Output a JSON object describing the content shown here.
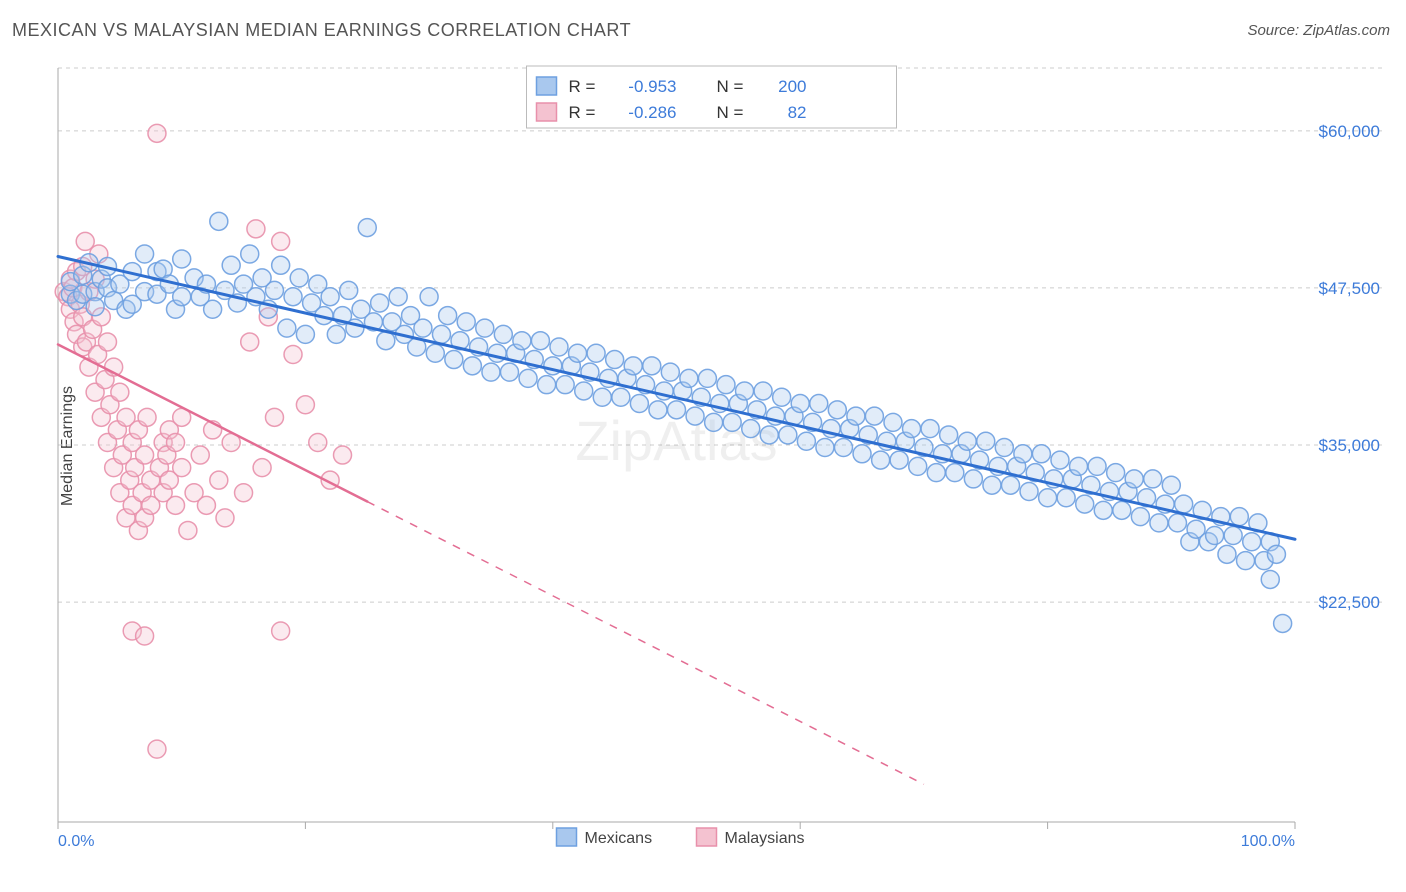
{
  "title": "MEXICAN VS MALAYSIAN MEDIAN EARNINGS CORRELATION CHART",
  "source": "Source: ZipAtlas.com",
  "watermark": "ZipAtlas",
  "ylabel": "Median Earnings",
  "chart": {
    "type": "scatter",
    "background_color": "#ffffff",
    "grid_color": "#cccccc",
    "axis_color": "#aaaaaa",
    "text_color": "#555555",
    "value_color": "#3d7bd9",
    "xlim": [
      0,
      100
    ],
    "ylim": [
      5000,
      65000
    ],
    "x_ticks": [
      0,
      20,
      40,
      60,
      80,
      100
    ],
    "x_tick_labels": [
      "0.0%",
      "",
      "",
      "",
      "",
      "100.0%"
    ],
    "y_ticks": [
      22500,
      35000,
      47500,
      60000
    ],
    "y_tick_labels": [
      "$22,500",
      "$35,000",
      "$47,500",
      "$60,000"
    ],
    "marker_radius": 9,
    "marker_fill_opacity": 0.35,
    "marker_stroke_opacity": 0.9,
    "series": [
      {
        "name": "Mexicans",
        "color_fill": "#a9c8ee",
        "color_stroke": "#6ea0e0",
        "trend_color": "#2f6fd0",
        "trend_width": 3,
        "trend_dash_after_x": 100,
        "trend": {
          "x0": 0,
          "y0": 50000,
          "x1": 100,
          "y1": 27500
        },
        "R": "-0.953",
        "N": "200",
        "points": [
          [
            1,
            47000
          ],
          [
            1,
            48000
          ],
          [
            1.5,
            46500
          ],
          [
            2,
            48500
          ],
          [
            2,
            47000
          ],
          [
            2.5,
            49500
          ],
          [
            3,
            47200
          ],
          [
            3,
            46000
          ],
          [
            3.5,
            48200
          ],
          [
            4,
            47500
          ],
          [
            4,
            49200
          ],
          [
            4.5,
            46500
          ],
          [
            5,
            47800
          ],
          [
            5.5,
            45800
          ],
          [
            6,
            48800
          ],
          [
            6,
            46200
          ],
          [
            7,
            47200
          ],
          [
            7,
            50200
          ],
          [
            8,
            48800
          ],
          [
            8,
            47000
          ],
          [
            8.5,
            49000
          ],
          [
            9,
            47800
          ],
          [
            9.5,
            45800
          ],
          [
            10,
            46800
          ],
          [
            10,
            49800
          ],
          [
            11,
            48300
          ],
          [
            11.5,
            46800
          ],
          [
            12,
            47800
          ],
          [
            12.5,
            45800
          ],
          [
            13,
            52800
          ],
          [
            13.5,
            47300
          ],
          [
            14,
            49300
          ],
          [
            14.5,
            46300
          ],
          [
            15,
            47800
          ],
          [
            15.5,
            50200
          ],
          [
            16,
            46800
          ],
          [
            16.5,
            48300
          ],
          [
            17,
            45800
          ],
          [
            17.5,
            47300
          ],
          [
            18,
            49300
          ],
          [
            18.5,
            44300
          ],
          [
            19,
            46800
          ],
          [
            19.5,
            48300
          ],
          [
            20,
            43800
          ],
          [
            20.5,
            46300
          ],
          [
            21,
            47800
          ],
          [
            21.5,
            45300
          ],
          [
            22,
            46800
          ],
          [
            22.5,
            43800
          ],
          [
            23,
            45300
          ],
          [
            23.5,
            47300
          ],
          [
            24,
            44300
          ],
          [
            24.5,
            45800
          ],
          [
            25,
            52300
          ],
          [
            25.5,
            44800
          ],
          [
            26,
            46300
          ],
          [
            26.5,
            43300
          ],
          [
            27,
            44800
          ],
          [
            27.5,
            46800
          ],
          [
            28,
            43800
          ],
          [
            28.5,
            45300
          ],
          [
            29,
            42800
          ],
          [
            29.5,
            44300
          ],
          [
            30,
            46800
          ],
          [
            30.5,
            42300
          ],
          [
            31,
            43800
          ],
          [
            31.5,
            45300
          ],
          [
            32,
            41800
          ],
          [
            32.5,
            43300
          ],
          [
            33,
            44800
          ],
          [
            33.5,
            41300
          ],
          [
            34,
            42800
          ],
          [
            34.5,
            44300
          ],
          [
            35,
            40800
          ],
          [
            35.5,
            42300
          ],
          [
            36,
            43800
          ],
          [
            36.5,
            40800
          ],
          [
            37,
            42300
          ],
          [
            37.5,
            43300
          ],
          [
            38,
            40300
          ],
          [
            38.5,
            41800
          ],
          [
            39,
            43300
          ],
          [
            39.5,
            39800
          ],
          [
            40,
            41300
          ],
          [
            40.5,
            42800
          ],
          [
            41,
            39800
          ],
          [
            41.5,
            41300
          ],
          [
            42,
            42300
          ],
          [
            42.5,
            39300
          ],
          [
            43,
            40800
          ],
          [
            43.5,
            42300
          ],
          [
            44,
            38800
          ],
          [
            44.5,
            40300
          ],
          [
            45,
            41800
          ],
          [
            45.5,
            38800
          ],
          [
            46,
            40300
          ],
          [
            46.5,
            41300
          ],
          [
            47,
            38300
          ],
          [
            47.5,
            39800
          ],
          [
            48,
            41300
          ],
          [
            48.5,
            37800
          ],
          [
            49,
            39300
          ],
          [
            49.5,
            40800
          ],
          [
            50,
            37800
          ],
          [
            50.5,
            39300
          ],
          [
            51,
            40300
          ],
          [
            51.5,
            37300
          ],
          [
            52,
            38800
          ],
          [
            52.5,
            40300
          ],
          [
            53,
            36800
          ],
          [
            53.5,
            38300
          ],
          [
            54,
            39800
          ],
          [
            54.5,
            36800
          ],
          [
            55,
            38300
          ],
          [
            55.5,
            39300
          ],
          [
            56,
            36300
          ],
          [
            56.5,
            37800
          ],
          [
            57,
            39300
          ],
          [
            57.5,
            35800
          ],
          [
            58,
            37300
          ],
          [
            58.5,
            38800
          ],
          [
            59,
            35800
          ],
          [
            59.5,
            37300
          ],
          [
            60,
            38300
          ],
          [
            60.5,
            35300
          ],
          [
            61,
            36800
          ],
          [
            61.5,
            38300
          ],
          [
            62,
            34800
          ],
          [
            62.5,
            36300
          ],
          [
            63,
            37800
          ],
          [
            63.5,
            34800
          ],
          [
            64,
            36300
          ],
          [
            64.5,
            37300
          ],
          [
            65,
            34300
          ],
          [
            65.5,
            35800
          ],
          [
            66,
            37300
          ],
          [
            66.5,
            33800
          ],
          [
            67,
            35300
          ],
          [
            67.5,
            36800
          ],
          [
            68,
            33800
          ],
          [
            68.5,
            35300
          ],
          [
            69,
            36300
          ],
          [
            69.5,
            33300
          ],
          [
            70,
            34800
          ],
          [
            70.5,
            36300
          ],
          [
            71,
            32800
          ],
          [
            71.5,
            34300
          ],
          [
            72,
            35800
          ],
          [
            72.5,
            32800
          ],
          [
            73,
            34300
          ],
          [
            73.5,
            35300
          ],
          [
            74,
            32300
          ],
          [
            74.5,
            33800
          ],
          [
            75,
            35300
          ],
          [
            75.5,
            31800
          ],
          [
            76,
            33300
          ],
          [
            76.5,
            34800
          ],
          [
            77,
            31800
          ],
          [
            77.5,
            33300
          ],
          [
            78,
            34300
          ],
          [
            78.5,
            31300
          ],
          [
            79,
            32800
          ],
          [
            79.5,
            34300
          ],
          [
            80,
            30800
          ],
          [
            80.5,
            32300
          ],
          [
            81,
            33800
          ],
          [
            81.5,
            30800
          ],
          [
            82,
            32300
          ],
          [
            82.5,
            33300
          ],
          [
            83,
            30300
          ],
          [
            83.5,
            31800
          ],
          [
            84,
            33300
          ],
          [
            84.5,
            29800
          ],
          [
            85,
            31300
          ],
          [
            85.5,
            32800
          ],
          [
            86,
            29800
          ],
          [
            86.5,
            31300
          ],
          [
            87,
            32300
          ],
          [
            87.5,
            29300
          ],
          [
            88,
            30800
          ],
          [
            88.5,
            32300
          ],
          [
            89,
            28800
          ],
          [
            89.5,
            30300
          ],
          [
            90,
            31800
          ],
          [
            90.5,
            28800
          ],
          [
            91,
            30300
          ],
          [
            91.5,
            27300
          ],
          [
            92,
            28300
          ],
          [
            92.5,
            29800
          ],
          [
            93,
            27300
          ],
          [
            93.5,
            27800
          ],
          [
            94,
            29300
          ],
          [
            94.5,
            26300
          ],
          [
            95,
            27800
          ],
          [
            95.5,
            29300
          ],
          [
            96,
            25800
          ],
          [
            96.5,
            27300
          ],
          [
            97,
            28800
          ],
          [
            97.5,
            25800
          ],
          [
            98,
            27300
          ],
          [
            98,
            24300
          ],
          [
            98.5,
            26300
          ],
          [
            99,
            20800
          ]
        ]
      },
      {
        "name": "Malaysians",
        "color_fill": "#f4c2d0",
        "color_stroke": "#e890ab",
        "trend_color": "#e36d93",
        "trend_width": 2.5,
        "trend_dash_after_x": 25,
        "trend": {
          "x0": 0,
          "y0": 43000,
          "x1": 70,
          "y1": 8000
        },
        "R": "-0.286",
        "N": "82",
        "points": [
          [
            0.5,
            47200
          ],
          [
            0.8,
            46800
          ],
          [
            1,
            48200
          ],
          [
            1,
            45800
          ],
          [
            1.2,
            47500
          ],
          [
            1.3,
            44800
          ],
          [
            1.5,
            48800
          ],
          [
            1.5,
            43800
          ],
          [
            1.8,
            46200
          ],
          [
            2,
            49200
          ],
          [
            2,
            42800
          ],
          [
            2,
            45200
          ],
          [
            2.2,
            51200
          ],
          [
            2.3,
            43200
          ],
          [
            2.5,
            47200
          ],
          [
            2.5,
            41200
          ],
          [
            2.8,
            44200
          ],
          [
            3,
            48200
          ],
          [
            3,
            39200
          ],
          [
            3.2,
            42200
          ],
          [
            3.3,
            50200
          ],
          [
            3.5,
            45200
          ],
          [
            3.5,
            37200
          ],
          [
            3.8,
            40200
          ],
          [
            4,
            43200
          ],
          [
            4,
            35200
          ],
          [
            4.2,
            38200
          ],
          [
            4.5,
            41200
          ],
          [
            4.5,
            33200
          ],
          [
            4.8,
            36200
          ],
          [
            5,
            39200
          ],
          [
            5,
            31200
          ],
          [
            5.2,
            34200
          ],
          [
            5.5,
            37200
          ],
          [
            5.5,
            29200
          ],
          [
            5.8,
            32200
          ],
          [
            6,
            35200
          ],
          [
            6,
            30200
          ],
          [
            6.2,
            33200
          ],
          [
            6.5,
            36200
          ],
          [
            6.5,
            28200
          ],
          [
            6.8,
            31200
          ],
          [
            7,
            34200
          ],
          [
            7,
            29200
          ],
          [
            7.2,
            37200
          ],
          [
            7.5,
            32200
          ],
          [
            7.5,
            30200
          ],
          [
            8,
            59800
          ],
          [
            8.2,
            33200
          ],
          [
            8.5,
            35200
          ],
          [
            8.5,
            31200
          ],
          [
            8.8,
            34200
          ],
          [
            9,
            36200
          ],
          [
            9,
            32200
          ],
          [
            9.5,
            35200
          ],
          [
            9.5,
            30200
          ],
          [
            10,
            37200
          ],
          [
            10,
            33200
          ],
          [
            10.5,
            28200
          ],
          [
            11,
            31200
          ],
          [
            11.5,
            34200
          ],
          [
            12,
            30200
          ],
          [
            12.5,
            36200
          ],
          [
            13,
            32200
          ],
          [
            13.5,
            29200
          ],
          [
            14,
            35200
          ],
          [
            15,
            31200
          ],
          [
            15.5,
            43200
          ],
          [
            16,
            52200
          ],
          [
            16.5,
            33200
          ],
          [
            17,
            45200
          ],
          [
            17.5,
            37200
          ],
          [
            18,
            51200
          ],
          [
            19,
            42200
          ],
          [
            20,
            38200
          ],
          [
            21,
            35200
          ],
          [
            22,
            32200
          ],
          [
            23,
            34200
          ],
          [
            6,
            20200
          ],
          [
            7,
            19800
          ],
          [
            8,
            10800
          ],
          [
            18,
            20200
          ]
        ]
      }
    ],
    "bottom_legend": [
      {
        "label": "Mexicans",
        "swatch_fill": "#a9c8ee",
        "swatch_stroke": "#6ea0e0"
      },
      {
        "label": "Malaysians",
        "swatch_fill": "#f4c2d0",
        "swatch_stroke": "#e890ab"
      }
    ]
  }
}
